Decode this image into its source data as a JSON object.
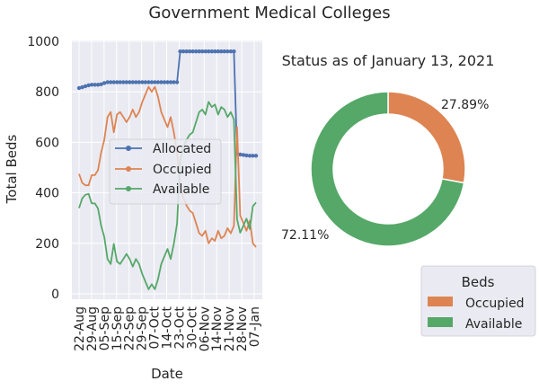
{
  "figure_title": "Government Medical Colleges",
  "chart_data": [
    {
      "type": "line",
      "title": "",
      "xlabel": "Date",
      "ylabel": "Total Beds",
      "ylim": [
        0,
        1000
      ],
      "yticks": [
        0,
        200,
        400,
        600,
        800,
        1000
      ],
      "xticks": [
        "22-Aug",
        "29-Aug",
        "05-Sep",
        "15-Sep",
        "22-Sep",
        "29-Sep",
        "07-Oct",
        "14-Oct",
        "23-Oct",
        "30-Oct",
        "06-Nov",
        "14-Nov",
        "21-Nov",
        "28-Nov",
        "07-Jan"
      ],
      "grid": true,
      "legend": "center-right",
      "series": [
        {
          "name": "Allocated",
          "color": "#4c72b0",
          "marker": true,
          "x": [
            0,
            1,
            2,
            3,
            4,
            5,
            6,
            7,
            8,
            9,
            10,
            11,
            12,
            13,
            14,
            15,
            16,
            17,
            18,
            19,
            20,
            21,
            22,
            23,
            24,
            25,
            26,
            27,
            28,
            29,
            30,
            31,
            32,
            33,
            34,
            35,
            36,
            37,
            38,
            39,
            40,
            41,
            42,
            43,
            44,
            45,
            46,
            47,
            48,
            49,
            50,
            51,
            52,
            53,
            54,
            55,
            56
          ],
          "values": [
            815,
            818,
            822,
            826,
            828,
            828,
            828,
            830,
            835,
            838,
            838,
            838,
            838,
            838,
            838,
            838,
            838,
            838,
            838,
            838,
            838,
            838,
            838,
            838,
            838,
            838,
            838,
            838,
            838,
            838,
            838,
            838,
            960,
            960,
            960,
            960,
            960,
            960,
            960,
            960,
            960,
            960,
            960,
            960,
            960,
            960,
            960,
            960,
            960,
            960,
            555,
            552,
            550,
            548,
            547,
            547,
            547
          ]
        },
        {
          "name": "Occupied",
          "color": "#dd8452",
          "marker": false,
          "x": [
            0,
            1,
            2,
            3,
            4,
            5,
            6,
            7,
            8,
            9,
            10,
            11,
            12,
            13,
            14,
            15,
            16,
            17,
            18,
            19,
            20,
            21,
            22,
            23,
            24,
            25,
            26,
            27,
            28,
            29,
            30,
            31,
            32,
            33,
            34,
            35,
            36,
            37,
            38,
            39,
            40,
            41,
            42,
            43,
            44,
            45,
            46,
            47,
            48,
            49,
            50,
            51,
            52,
            53,
            54,
            55,
            56
          ],
          "values": [
            475,
            440,
            430,
            430,
            470,
            470,
            490,
            560,
            610,
            700,
            720,
            640,
            710,
            720,
            700,
            680,
            700,
            730,
            700,
            720,
            760,
            790,
            820,
            800,
            820,
            780,
            720,
            690,
            660,
            700,
            640,
            560,
            430,
            380,
            350,
            330,
            320,
            280,
            240,
            230,
            250,
            200,
            220,
            210,
            250,
            220,
            230,
            260,
            240,
            270,
            660,
            310,
            280,
            250,
            290,
            200,
            185
          ]
        },
        {
          "name": "Available",
          "color": "#55a868",
          "marker": false,
          "x": [
            0,
            1,
            2,
            3,
            4,
            5,
            6,
            7,
            8,
            9,
            10,
            11,
            12,
            13,
            14,
            15,
            16,
            17,
            18,
            19,
            20,
            21,
            22,
            23,
            24,
            25,
            26,
            27,
            28,
            29,
            30,
            31,
            32,
            33,
            34,
            35,
            36,
            37,
            38,
            39,
            40,
            41,
            42,
            43,
            44,
            45,
            46,
            47,
            48,
            49,
            50,
            51,
            52,
            53,
            54,
            55,
            56
          ],
          "values": [
            340,
            378,
            392,
            396,
            358,
            358,
            338,
            270,
            225,
            138,
            118,
            198,
            128,
            118,
            138,
            158,
            138,
            108,
            138,
            118,
            78,
            48,
            18,
            38,
            18,
            58,
            118,
            148,
            178,
            138,
            198,
            278,
            530,
            580,
            610,
            630,
            640,
            680,
            720,
            730,
            710,
            760,
            740,
            750,
            710,
            740,
            730,
            700,
            720,
            690,
            295,
            242,
            270,
            298,
            257,
            347,
            362
          ]
        }
      ]
    },
    {
      "type": "pie",
      "title": "Status as of January 13, 2021",
      "donut": true,
      "labels": [
        "Occupied",
        "Available"
      ],
      "values": [
        27.89,
        72.11
      ],
      "value_labels": [
        "27.89%",
        "72.11%"
      ],
      "colors": [
        "#dd8452",
        "#55a868"
      ],
      "legend_title": "Beds",
      "legend": "bottom-right"
    }
  ]
}
